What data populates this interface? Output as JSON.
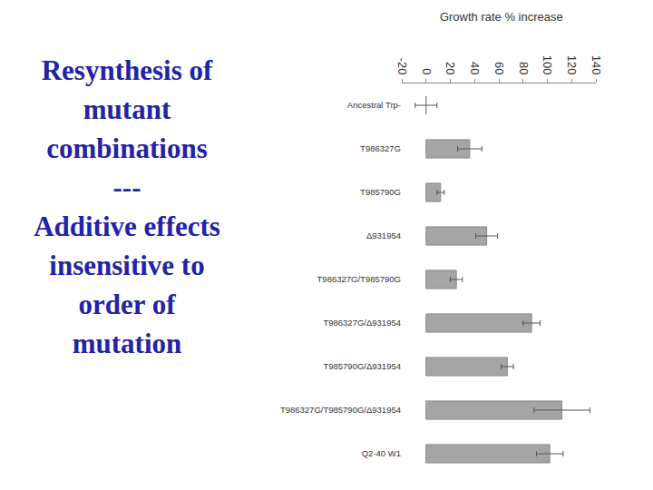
{
  "chart_data": {
    "type": "bar",
    "orientation": "horizontal",
    "title": "Growth rate % increase",
    "categories": [
      "Ancestral Trp-",
      "T986327G",
      "T985790G",
      "Δ931954",
      "T986327G/T985790G",
      "T986327G/Δ931954",
      "T985790G/Δ931954",
      "T986327G/T985790G/Δ931954",
      "Q2-40 W1"
    ],
    "values": [
      0,
      36,
      12,
      50,
      25,
      87,
      67,
      112,
      102
    ],
    "errors": [
      9,
      10,
      3,
      9,
      5,
      7,
      5,
      23,
      11
    ],
    "color": "#a5a5a5",
    "xlim": [
      -20,
      140
    ],
    "xticks": [
      -20,
      0,
      20,
      40,
      60,
      80,
      100,
      120,
      140
    ],
    "grid": false
  },
  "slide_text": [
    "Resynthesis of",
    "mutant",
    "combinations",
    "---",
    "Additive effects",
    "insensitive to",
    "order of",
    "mutation"
  ]
}
